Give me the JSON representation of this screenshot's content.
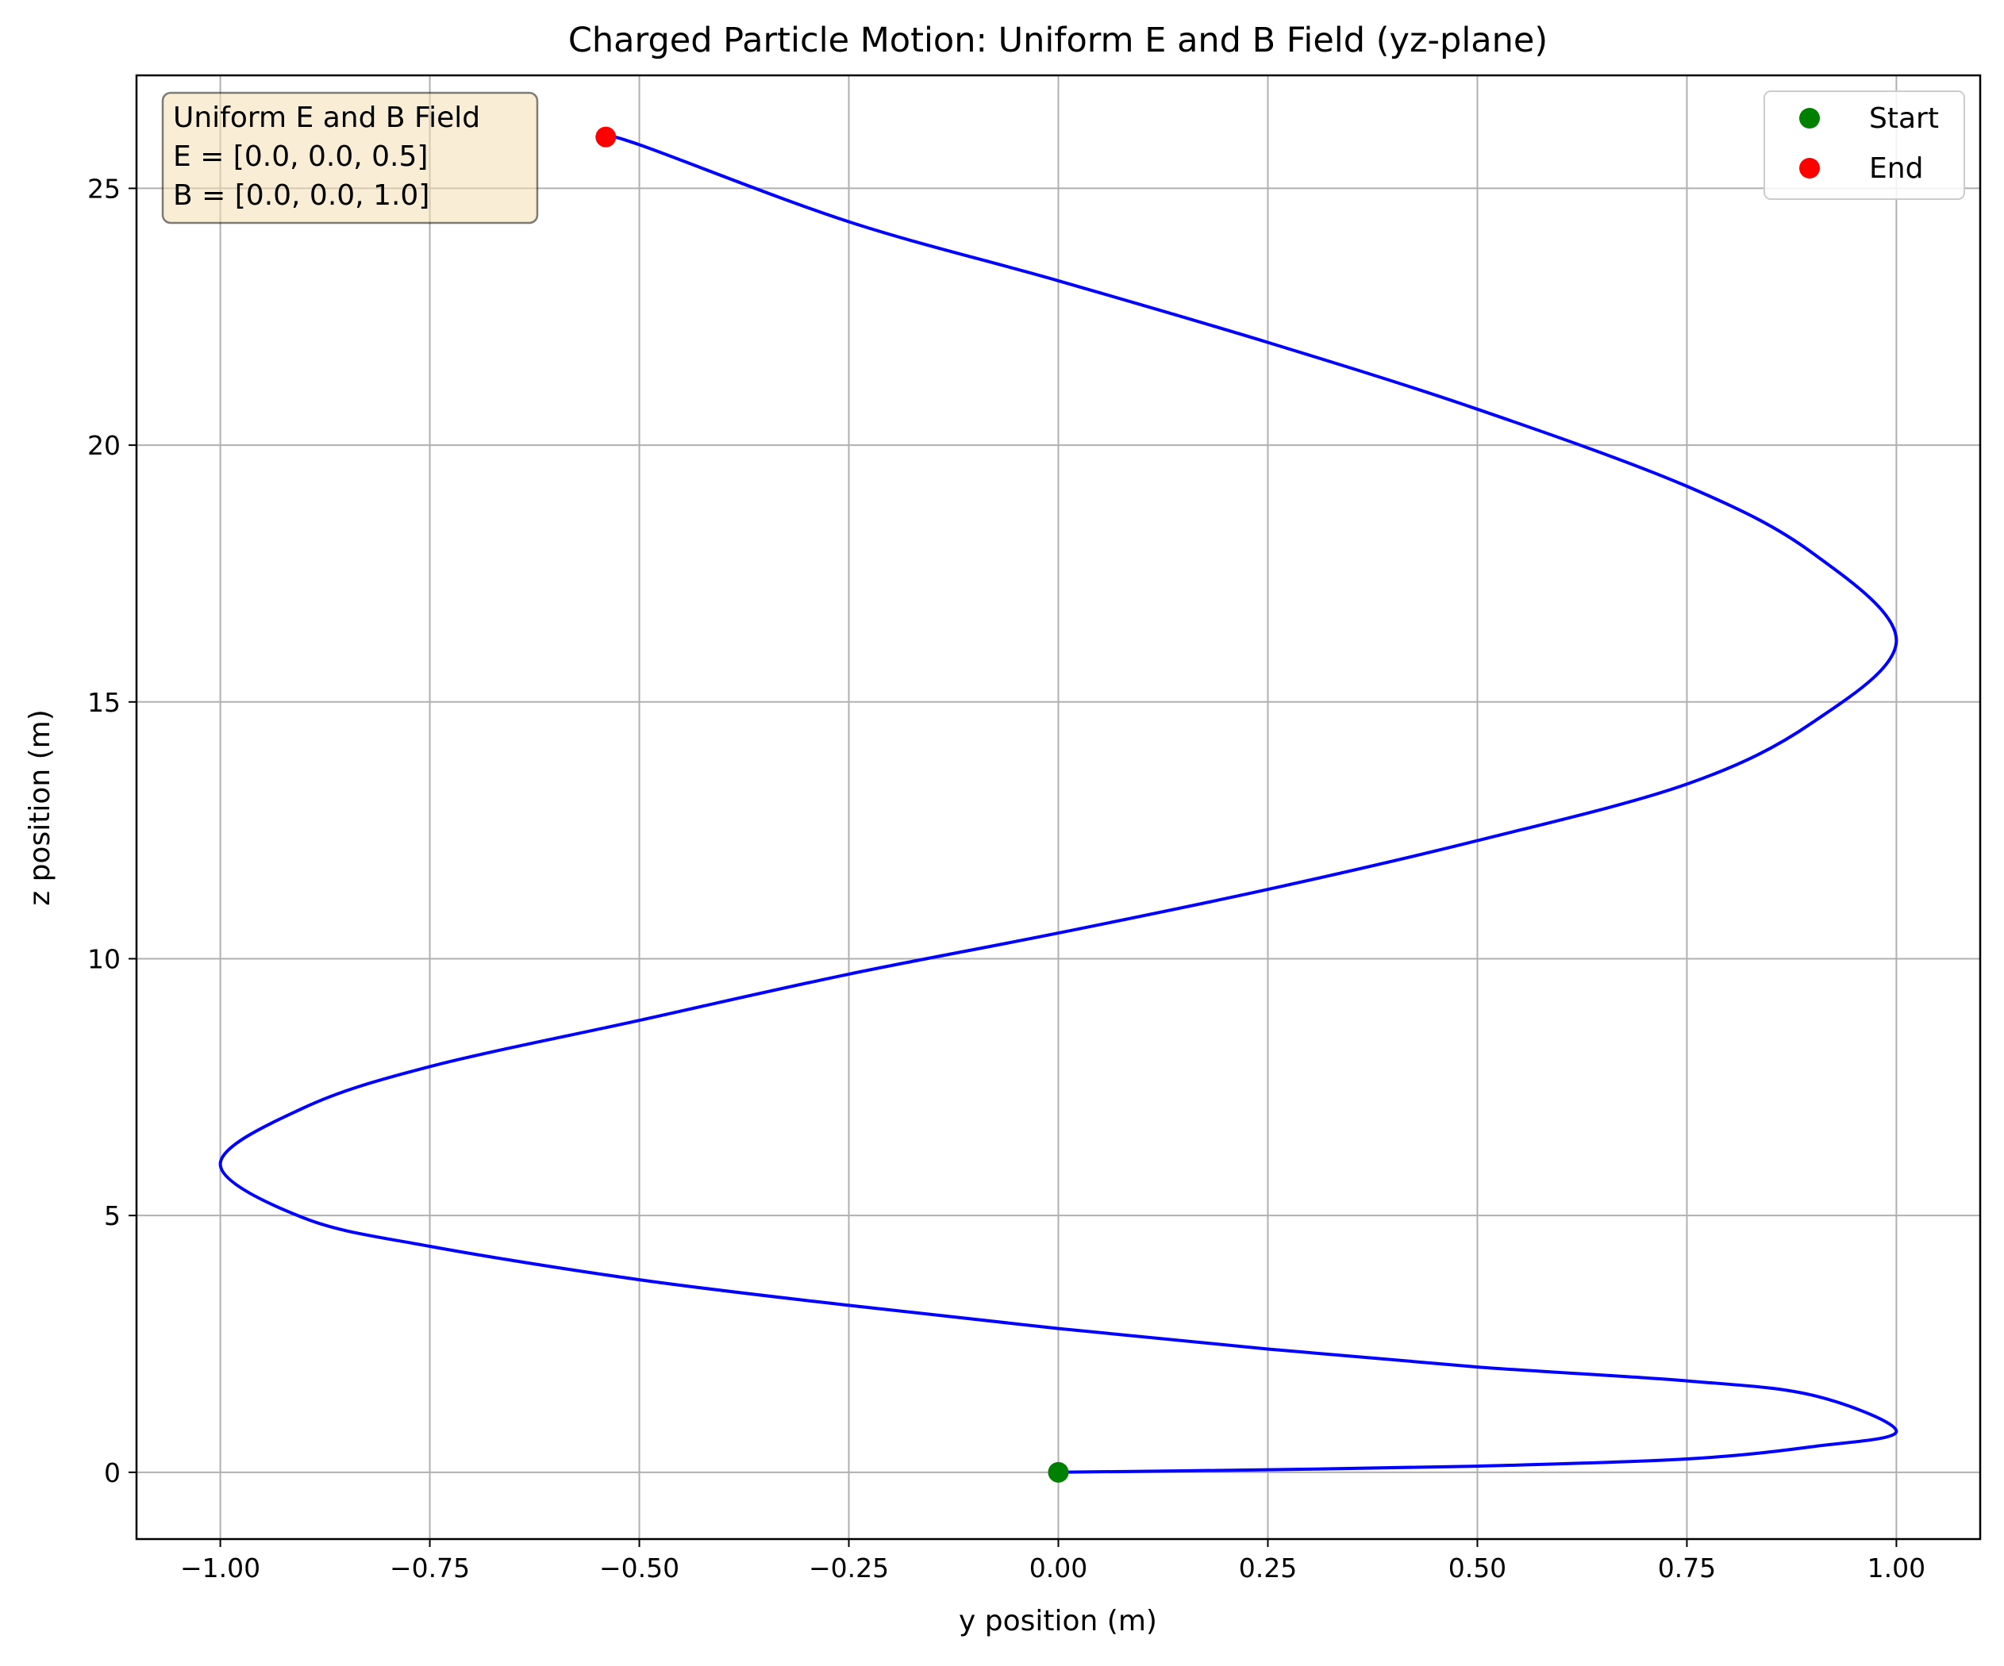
{
  "chart_data": {
    "type": "line",
    "title": "Charged Particle Motion: Uniform E and B Field (yz-plane)",
    "xlabel": "y position (m)",
    "ylabel": "z position (m)",
    "xlim": [
      -1.1,
      1.1
    ],
    "ylim": [
      -1.3,
      27.2
    ],
    "xticks": [
      -1.0,
      -0.75,
      -0.5,
      -0.25,
      0.0,
      0.25,
      0.5,
      0.75,
      1.0
    ],
    "xtick_labels": [
      "−1.00",
      "−0.75",
      "−0.50",
      "−0.25",
      "0.00",
      "0.25",
      "0.50",
      "0.75",
      "1.00"
    ],
    "yticks": [
      0,
      5,
      10,
      15,
      20,
      25
    ],
    "ytick_labels": [
      "0",
      "5",
      "10",
      "15",
      "20",
      "25"
    ],
    "grid": true,
    "legend_position": "top-right",
    "series": [
      {
        "name": "",
        "color": "#0000ff",
        "style": "line",
        "x": [
          0.0,
          0.25,
          0.5,
          0.75,
          0.9,
          1.0,
          0.9,
          0.75,
          0.5,
          0.25,
          0.0,
          -0.25,
          -0.5,
          -0.75,
          -0.9,
          -1.0,
          -0.9,
          -0.75,
          -0.5,
          -0.25,
          0.0,
          0.25,
          0.5,
          0.75,
          0.9,
          1.0,
          0.9,
          0.75,
          0.5,
          0.25,
          0.0,
          -0.25,
          -0.5,
          -0.54
        ],
        "y": [
          0.0,
          0.05,
          0.12,
          0.26,
          0.5,
          0.8,
          1.5,
          1.78,
          2.05,
          2.4,
          2.8,
          3.25,
          3.75,
          4.4,
          4.95,
          6.0,
          7.1,
          7.9,
          8.8,
          9.7,
          10.5,
          11.35,
          12.3,
          13.4,
          14.6,
          16.2,
          17.9,
          19.2,
          20.7,
          22.0,
          23.2,
          24.35,
          25.85,
          26.0
        ]
      },
      {
        "name": "Start",
        "color": "#008000",
        "style": "marker",
        "x": [
          0.0
        ],
        "y": [
          0.0
        ]
      },
      {
        "name": "End",
        "color": "#ff0000",
        "style": "marker",
        "x": [
          -0.54
        ],
        "y": [
          26.0
        ]
      }
    ],
    "annotation": {
      "lines": [
        "Uniform E and B Field",
        "E = [0.0, 0.0, 0.5]",
        "B = [0.0, 0.0, 1.0]"
      ],
      "position": "top-left",
      "background": "#f5deb3"
    },
    "legend": [
      {
        "label": "Start",
        "color": "#008000"
      },
      {
        "label": "End",
        "color": "#ff0000"
      }
    ]
  }
}
